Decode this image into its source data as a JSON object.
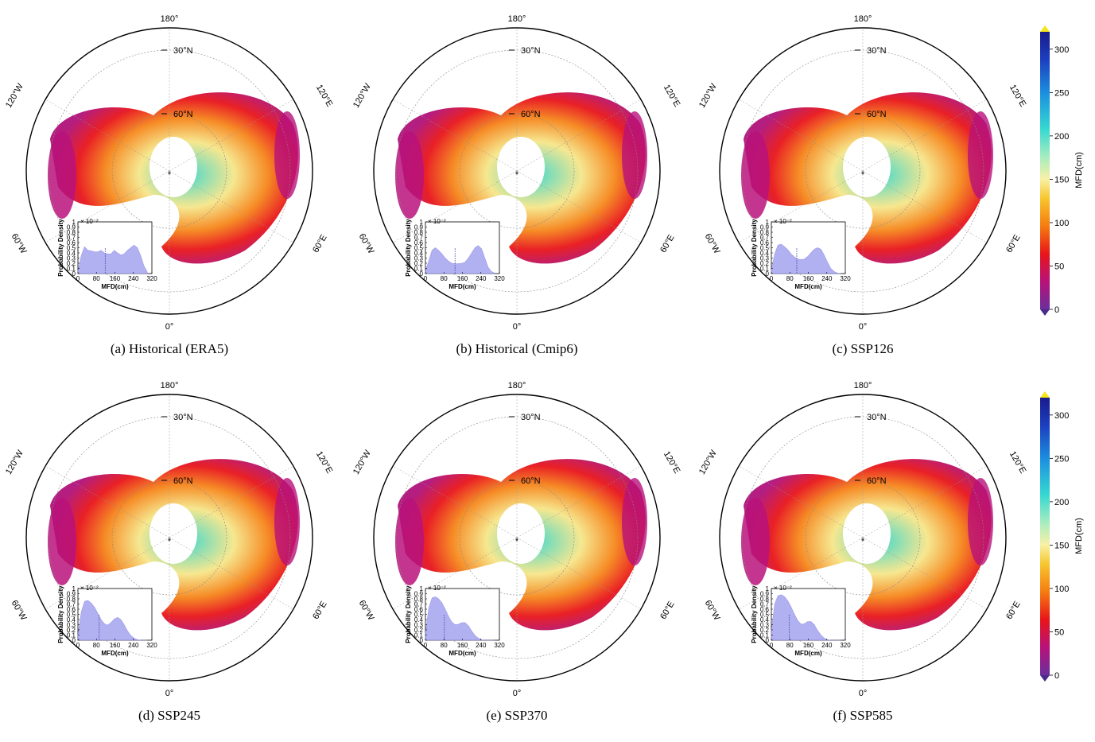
{
  "figure": {
    "center_label": "*",
    "map_labels": {
      "top": "180°",
      "bottom": "0°",
      "lat_30": "30°N",
      "lat_60": "60°N",
      "left_upper": "120°W",
      "left_lower": "60°W",
      "right_upper": "120°E",
      "right_lower": "60°E"
    },
    "inset": {
      "ylabel": "Probability Density",
      "xlabel": "MFD(cm)",
      "multiplier": "× 10⁻²",
      "yticks": [
        "0",
        "0.1",
        "0.2",
        "0.3",
        "0.4",
        "0.5",
        "0.6",
        "0.7",
        "0.8",
        "0.9",
        "1"
      ],
      "xticks": [
        "0",
        "80",
        "160",
        "240",
        "320"
      ]
    },
    "panels": [
      {
        "caption": "(a) Historical (ERA5)",
        "density": [
          0.05,
          0.35,
          0.52,
          0.45,
          0.44,
          0.42,
          0.42,
          0.45,
          0.4,
          0.38,
          0.38,
          0.45,
          0.4,
          0.36,
          0.38,
          0.45,
          0.5,
          0.55,
          0.5,
          0.35,
          0.15,
          0.03
        ],
        "mean_x": 118
      },
      {
        "caption": "(b) Historical (Cmip6)",
        "density": [
          0.05,
          0.25,
          0.45,
          0.5,
          0.45,
          0.38,
          0.3,
          0.24,
          0.2,
          0.19,
          0.19,
          0.2,
          0.22,
          0.3,
          0.4,
          0.5,
          0.54,
          0.48,
          0.3,
          0.12,
          0.04,
          0.01
        ],
        "mean_x": 128
      },
      {
        "caption": "(c) SSP126",
        "density": [
          0.08,
          0.38,
          0.55,
          0.57,
          0.52,
          0.46,
          0.38,
          0.32,
          0.28,
          0.27,
          0.28,
          0.33,
          0.4,
          0.47,
          0.5,
          0.47,
          0.36,
          0.22,
          0.1,
          0.04,
          0.01,
          0.0
        ],
        "mean_x": 110
      },
      {
        "caption": "(d) SSP245",
        "density": [
          0.1,
          0.55,
          0.75,
          0.77,
          0.72,
          0.64,
          0.52,
          0.4,
          0.32,
          0.29,
          0.34,
          0.41,
          0.44,
          0.4,
          0.3,
          0.18,
          0.09,
          0.04,
          0.01,
          0.0,
          0.0,
          0.0
        ],
        "mean_x": 92
      },
      {
        "caption": "(e) SSP370",
        "density": [
          0.14,
          0.62,
          0.82,
          0.84,
          0.8,
          0.72,
          0.6,
          0.46,
          0.35,
          0.3,
          0.31,
          0.34,
          0.34,
          0.28,
          0.18,
          0.09,
          0.04,
          0.01,
          0.0,
          0.0,
          0.0,
          0.0
        ],
        "mean_x": 82
      },
      {
        "caption": "(f) SSP585",
        "density": [
          0.18,
          0.7,
          0.86,
          0.88,
          0.84,
          0.76,
          0.64,
          0.5,
          0.38,
          0.31,
          0.32,
          0.36,
          0.36,
          0.3,
          0.19,
          0.1,
          0.04,
          0.01,
          0.0,
          0.0,
          0.0,
          0.0
        ],
        "mean_x": 78
      }
    ],
    "colorbar": {
      "label": "MFD(cm)",
      "ticks": [
        "0",
        "50",
        "100",
        "150",
        "200",
        "250",
        "300"
      ],
      "colors": [
        "#6a2f9c",
        "#b8127a",
        "#e8151a",
        "#f57b10",
        "#f7c62f",
        "#f8f1a6",
        "#a6ecc0",
        "#36d8d2",
        "#1b8fdf",
        "#1c3fbf",
        "#1a1b8c"
      ],
      "under_color": "#4a2a8a",
      "over_color": "#f5e41a"
    }
  }
}
